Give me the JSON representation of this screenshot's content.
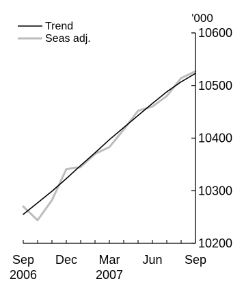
{
  "chart_data": {
    "type": "line",
    "y_unit": "'000",
    "x_tick_labels": [
      {
        "line1": "Sep",
        "line2": "2006",
        "month_index": 0
      },
      {
        "line1": "Dec",
        "line2": "",
        "month_index": 3
      },
      {
        "line1": "Mar",
        "line2": "2007",
        "month_index": 6
      },
      {
        "line1": "Jun",
        "line2": "",
        "month_index": 9
      },
      {
        "line1": "Sep",
        "line2": "",
        "month_index": 12
      }
    ],
    "x_range": [
      0,
      12
    ],
    "ylim": [
      10200,
      10600
    ],
    "y_ticks": [
      10200,
      10300,
      10400,
      10500,
      10600
    ],
    "y_axis_position": "right",
    "grid": false,
    "legend_position": "top-left",
    "series": [
      {
        "name": "Trend",
        "color": "#000000",
        "x": [
          0,
          1,
          2,
          3,
          4,
          5,
          6,
          7,
          8,
          9,
          10,
          11,
          12
        ],
        "values": [
          10255,
          10277,
          10299,
          10323,
          10348,
          10372,
          10397,
          10420,
          10443,
          10466,
          10488,
          10507,
          10523
        ]
      },
      {
        "name": "Seas adj.",
        "color": "#bdbdbd",
        "x": [
          0,
          1,
          2,
          3,
          4,
          5,
          6,
          7,
          8,
          9,
          10,
          11,
          12
        ],
        "values": [
          10270,
          10244,
          10282,
          10341,
          10345,
          10370,
          10383,
          10416,
          10452,
          10460,
          10480,
          10514,
          10527
        ]
      }
    ]
  }
}
